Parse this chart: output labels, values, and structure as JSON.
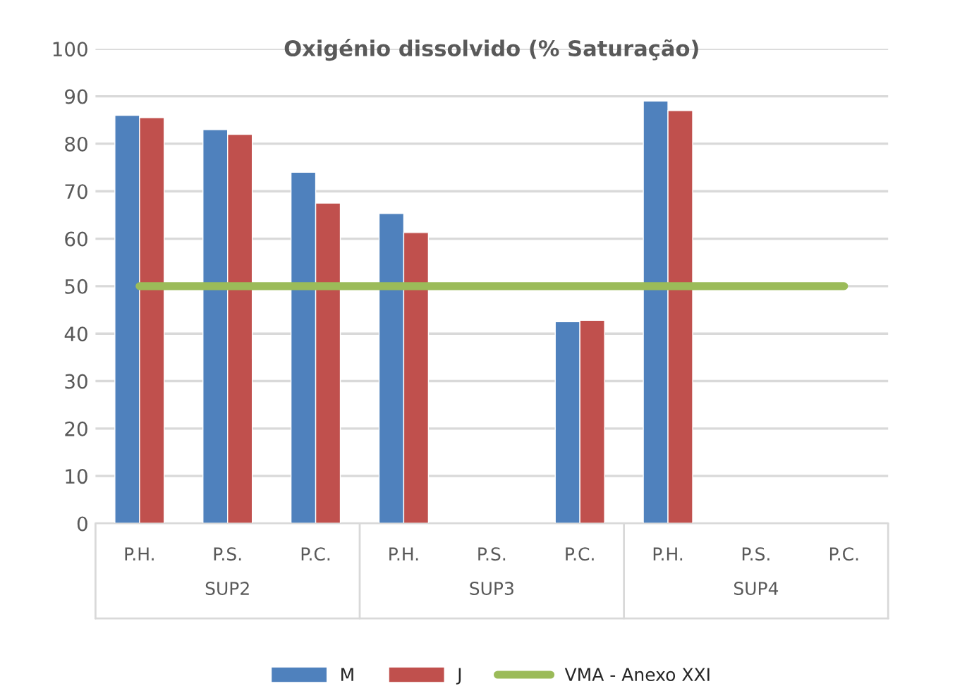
{
  "chart_data": {
    "type": "bar",
    "title": "Oxigénio dissolvido (% Saturação)",
    "categories": [
      "P.H.",
      "P.S.",
      "P.C.",
      "P.H.",
      "P.S.",
      "P.C.",
      "P.H.",
      "P.S.",
      "P.C."
    ],
    "annotations": [
      "SUP2",
      "SUP3",
      "SUP4"
    ],
    "series": [
      {
        "name": "M",
        "color": "#4f81bd",
        "values": [
          86,
          83,
          74,
          65.3,
          null,
          42.5,
          89,
          null,
          null
        ]
      },
      {
        "name": "J",
        "color": "#c0504d",
        "values": [
          85.5,
          82,
          67.5,
          61.3,
          null,
          42.8,
          87,
          null,
          null
        ]
      },
      {
        "name": "VMA - Anexo XXI",
        "type": "line",
        "color": "#9bbb59",
        "values": [
          50,
          50,
          50,
          50,
          50,
          50,
          50,
          50,
          50
        ]
      }
    ],
    "ylim": [
      0,
      100
    ],
    "yticks": [
      0,
      10,
      20,
      30,
      40,
      50,
      60,
      70,
      80,
      90,
      100
    ],
    "grid": "y",
    "legend": "bottom"
  }
}
